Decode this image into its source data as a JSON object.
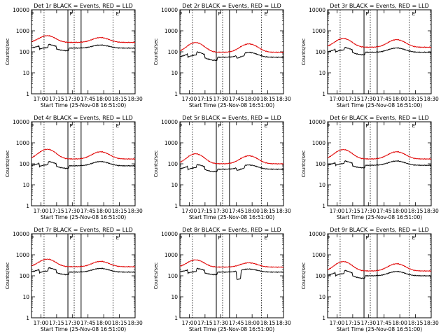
{
  "figure": {
    "start_time_label": "Start Time (25-Nov-08 16:51:00)",
    "colors": {
      "events": "#000000",
      "lld": "#e00000",
      "axes": "#000000",
      "background": "#ffffff"
    }
  },
  "chart_data": [
    {
      "type": "line",
      "title": "Det 1r BLACK = Events, RED = LLD",
      "ylabel": "Counts/sec",
      "xlabel": "Start Time (25-Nov-08 16:51:00)",
      "x_ticks": [
        "17:00",
        "17:15",
        "17:30",
        "17:45",
        "18:00",
        "18:15",
        "18:30"
      ],
      "y_ticks": [
        "1",
        "10",
        "100",
        "1000",
        "10000"
      ],
      "ylim": [
        1,
        10000
      ],
      "yscale": "log",
      "xlim": [
        "16:51",
        "18:30"
      ],
      "markers": [
        "P",
        "P",
        "E"
      ],
      "series": [
        {
          "name": "Events",
          "color": "#000000",
          "base": 150,
          "hump1": [
            17.1,
            1.5
          ],
          "hump2": [
            17.95,
            1.4
          ],
          "dips": [
            [
              16.97,
              17.12,
              0.7
            ],
            [
              17.25,
              17.45,
              0.75
            ]
          ],
          "x": [],
          "y": []
        },
        {
          "name": "LLD",
          "color": "#e00000",
          "base": 280,
          "hump1": [
            17.1,
            2.1
          ],
          "hump2": [
            17.95,
            1.7
          ],
          "x": [],
          "y": []
        }
      ]
    },
    {
      "type": "line",
      "title": "Det 2r BLACK = Events, RED = LLD",
      "ylabel": "Counts/sec",
      "xlabel": "Start Time (25-Nov-08 16:51:00)",
      "x_ticks": [
        "17:00",
        "17:15",
        "17:30",
        "17:45",
        "18:00",
        "18:15",
        "18:30"
      ],
      "y_ticks": [
        "1",
        "10",
        "100",
        "1000",
        "10000"
      ],
      "ylim": [
        1,
        10000
      ],
      "yscale": "log",
      "xlim": [
        "16:51",
        "18:30"
      ],
      "markers": [
        "P",
        "P",
        "E"
      ],
      "series": [
        {
          "name": "Events",
          "color": "#000000",
          "base": 55,
          "hump1": [
            17.1,
            1.8
          ],
          "hump2": [
            17.95,
            1.7
          ],
          "dips": [
            [
              16.97,
              17.12,
              0.7
            ],
            [
              17.25,
              17.45,
              0.7
            ],
            [
              17.75,
              17.88,
              0.75
            ]
          ],
          "x": [],
          "y": []
        },
        {
          "name": "LLD",
          "color": "#e00000",
          "base": 95,
          "hump1": [
            17.1,
            2.9
          ],
          "hump2": [
            17.95,
            2.5
          ],
          "x": [],
          "y": []
        }
      ]
    },
    {
      "type": "line",
      "title": "Det 3r BLACK = Events, RED = LLD",
      "ylabel": "Counts/sec",
      "xlabel": "Start Time (25-Nov-08 16:51:00)",
      "x_ticks": [
        "17:00",
        "17:15",
        "17:30",
        "17:45",
        "18:00",
        "18:15",
        "18:30"
      ],
      "y_ticks": [
        "1",
        "10",
        "100",
        "1000",
        "10000"
      ],
      "ylim": [
        1,
        10000
      ],
      "yscale": "log",
      "xlim": [
        "16:51",
        "18:30"
      ],
      "markers": [
        "P",
        "P",
        "E"
      ],
      "series": [
        {
          "name": "Events",
          "color": "#000000",
          "base": 95,
          "hump1": [
            17.1,
            1.7
          ],
          "hump2": [
            17.95,
            1.6
          ],
          "dips": [
            [
              16.97,
              17.12,
              0.75
            ],
            [
              17.25,
              17.45,
              0.75
            ]
          ],
          "x": [],
          "y": []
        },
        {
          "name": "LLD",
          "color": "#e00000",
          "base": 165,
          "hump1": [
            17.1,
            2.6
          ],
          "hump2": [
            17.95,
            2.3
          ],
          "x": [],
          "y": []
        }
      ]
    },
    {
      "type": "line",
      "title": "Det 4r BLACK = Events, RED = LLD",
      "ylabel": "Counts/sec",
      "xlabel": "Start Time (25-Nov-08 16:51:00)",
      "x_ticks": [
        "17:00",
        "17:15",
        "17:30",
        "17:45",
        "18:00",
        "18:15",
        "18:30"
      ],
      "y_ticks": [
        "1",
        "10",
        "100",
        "1000",
        "10000"
      ],
      "ylim": [
        1,
        10000
      ],
      "yscale": "log",
      "xlim": [
        "16:51",
        "18:30"
      ],
      "markers": [
        "P",
        "P",
        "E"
      ],
      "series": [
        {
          "name": "Events",
          "color": "#000000",
          "base": 80,
          "hump1": [
            17.1,
            1.6
          ],
          "hump2": [
            17.95,
            1.6
          ],
          "dips": [
            [
              16.97,
              17.12,
              0.7
            ],
            [
              17.25,
              17.45,
              0.75
            ]
          ],
          "x": [],
          "y": []
        },
        {
          "name": "LLD",
          "color": "#e00000",
          "base": 170,
          "hump1": [
            17.1,
            2.9
          ],
          "hump2": [
            17.95,
            2.2
          ],
          "x": [],
          "y": []
        }
      ]
    },
    {
      "type": "line",
      "title": "Det 5r BLACK = Events, RED = LLD",
      "ylabel": "Counts/sec",
      "xlabel": "Start Time (25-Nov-08 16:51:00)",
      "x_ticks": [
        "17:00",
        "17:15",
        "17:30",
        "17:45",
        "18:00",
        "18:15",
        "18:30"
      ],
      "y_ticks": [
        "1",
        "10",
        "100",
        "1000",
        "10000"
      ],
      "ylim": [
        1,
        10000
      ],
      "yscale": "log",
      "xlim": [
        "16:51",
        "18:30"
      ],
      "markers": [
        "P",
        "P",
        "E"
      ],
      "series": [
        {
          "name": "Events",
          "color": "#000000",
          "base": 55,
          "hump1": [
            17.1,
            1.7
          ],
          "hump2": [
            17.95,
            1.6
          ],
          "dips": [
            [
              16.97,
              17.12,
              0.7
            ],
            [
              17.25,
              17.45,
              0.75
            ],
            [
              17.75,
              17.88,
              0.75
            ]
          ],
          "x": [],
          "y": []
        },
        {
          "name": "LLD",
          "color": "#e00000",
          "base": 100,
          "hump1": [
            17.1,
            3.0
          ],
          "hump2": [
            17.95,
            2.4
          ],
          "x": [],
          "y": []
        }
      ]
    },
    {
      "type": "line",
      "title": "Det 6r BLACK = Events, RED = LLD",
      "ylabel": "Counts/sec",
      "xlabel": "Start Time (25-Nov-08 16:51:00)",
      "x_ticks": [
        "17:00",
        "17:15",
        "17:30",
        "17:45",
        "18:00",
        "18:15",
        "18:30"
      ],
      "y_ticks": [
        "1",
        "10",
        "100",
        "1000",
        "10000"
      ],
      "ylim": [
        1,
        10000
      ],
      "yscale": "log",
      "xlim": [
        "16:51",
        "18:30"
      ],
      "markers": [
        "P",
        "P",
        "E"
      ],
      "series": [
        {
          "name": "Events",
          "color": "#000000",
          "base": 85,
          "hump1": [
            17.1,
            1.6
          ],
          "hump2": [
            17.95,
            1.6
          ],
          "dips": [
            [
              16.97,
              17.12,
              0.75
            ],
            [
              17.25,
              17.45,
              0.75
            ]
          ],
          "x": [],
          "y": []
        },
        {
          "name": "LLD",
          "color": "#e00000",
          "base": 170,
          "hump1": [
            17.1,
            2.8
          ],
          "hump2": [
            17.95,
            2.2
          ],
          "x": [],
          "y": []
        }
      ]
    },
    {
      "type": "line",
      "title": "Det 7r BLACK = Events, RED = LLD",
      "ylabel": "Counts/sec",
      "xlabel": "Start Time (25-Nov-08 16:51:00)",
      "x_ticks": [
        "17:00",
        "17:15",
        "17:30",
        "17:45",
        "18:00",
        "18:15",
        "18:30"
      ],
      "y_ticks": [
        "1",
        "10",
        "100",
        "1000",
        "10000"
      ],
      "ylim": [
        1,
        10000
      ],
      "yscale": "log",
      "xlim": [
        "16:51",
        "18:30"
      ],
      "markers": [
        "P",
        "P",
        "E"
      ],
      "series": [
        {
          "name": "Events",
          "color": "#000000",
          "base": 150,
          "hump1": [
            17.1,
            1.6
          ],
          "hump2": [
            17.95,
            1.5
          ],
          "dips": [
            [
              16.97,
              17.12,
              0.7
            ],
            [
              17.25,
              17.45,
              0.75
            ]
          ],
          "x": [],
          "y": []
        },
        {
          "name": "LLD",
          "color": "#e00000",
          "base": 270,
          "hump1": [
            17.1,
            2.3
          ],
          "hump2": [
            17.95,
            1.8
          ],
          "x": [],
          "y": []
        }
      ]
    },
    {
      "type": "line",
      "title": "Det 8r BLACK = Events, RED = LLD",
      "ylabel": "Counts/sec",
      "xlabel": "Start Time (25-Nov-08 16:51:00)",
      "x_ticks": [
        "17:00",
        "17:15",
        "17:30",
        "17:45",
        "18:00",
        "18:15",
        "18:30"
      ],
      "y_ticks": [
        "1",
        "10",
        "100",
        "1000",
        "10000"
      ],
      "ylim": [
        1,
        10000
      ],
      "yscale": "log",
      "xlim": [
        "16:51",
        "18:30"
      ],
      "markers": [
        "P",
        "P",
        "E"
      ],
      "series": [
        {
          "name": "Events",
          "color": "#000000",
          "base": 150,
          "hump1": [
            17.1,
            1.5
          ],
          "hump2": [
            17.95,
            1.4
          ],
          "dips": [
            [
              16.97,
              17.12,
              0.7
            ],
            [
              17.25,
              17.45,
              0.75
            ],
            [
              17.75,
              17.82,
              0.4
            ]
          ],
          "x": [],
          "y": []
        },
        {
          "name": "LLD",
          "color": "#e00000",
          "base": 260,
          "hump1": [
            17.1,
            2.2
          ],
          "hump2": [
            17.95,
            1.6
          ],
          "x": [],
          "y": []
        }
      ]
    },
    {
      "type": "line",
      "title": "Det 9r BLACK = Events, RED = LLD",
      "ylabel": "Counts/sec",
      "xlabel": "Start Time (25-Nov-08 16:51:00)",
      "x_ticks": [
        "17:00",
        "17:15",
        "17:30",
        "17:45",
        "18:00",
        "18:15",
        "18:30"
      ],
      "y_ticks": [
        "1",
        "10",
        "100",
        "1000",
        "10000"
      ],
      "ylim": [
        1,
        10000
      ],
      "yscale": "log",
      "xlim": [
        "16:51",
        "18:30"
      ],
      "markers": [
        "P",
        "P",
        "E"
      ],
      "series": [
        {
          "name": "Events",
          "color": "#000000",
          "base": 100,
          "hump1": [
            17.1,
            1.8
          ],
          "hump2": [
            17.95,
            1.6
          ],
          "dips": [
            [
              16.97,
              17.12,
              0.7
            ],
            [
              17.25,
              17.45,
              0.75
            ]
          ],
          "x": [],
          "y": []
        },
        {
          "name": "LLD",
          "color": "#e00000",
          "base": 170,
          "hump1": [
            17.1,
            2.8
          ],
          "hump2": [
            17.95,
            2.2
          ],
          "x": [],
          "y": []
        }
      ]
    }
  ]
}
